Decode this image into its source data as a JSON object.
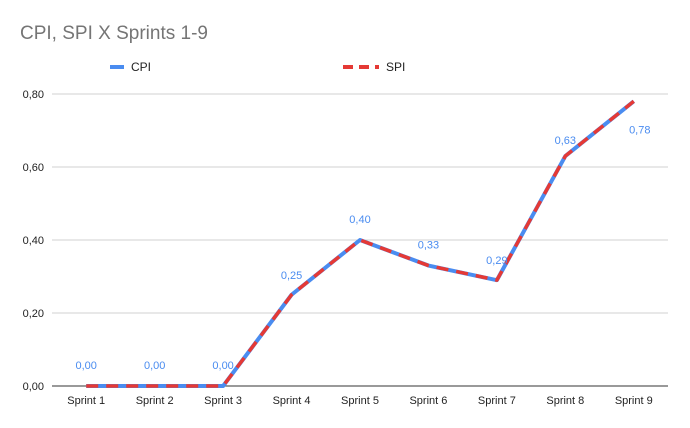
{
  "chart_data": {
    "type": "line",
    "title": "CPI, SPI X Sprints 1-9",
    "xlabel": "",
    "ylabel": "",
    "categories": [
      "Sprint 1",
      "Sprint 2",
      "Sprint 3",
      "Sprint 4",
      "Sprint 5",
      "Sprint 6",
      "Sprint 7",
      "Sprint 8",
      "Sprint 9"
    ],
    "series": [
      {
        "name": "CPI",
        "values": [
          0.0,
          0.0,
          0.0,
          0.25,
          0.4,
          0.33,
          0.29,
          0.63,
          0.78
        ],
        "color": "#4a8cf0",
        "style": "solid"
      },
      {
        "name": "SPI",
        "values": [
          0.0,
          0.0,
          0.0,
          0.25,
          0.4,
          0.33,
          0.29,
          0.63,
          0.78
        ],
        "color": "#e53935",
        "style": "dashed"
      }
    ],
    "data_labels": [
      "0,00",
      "0,00",
      "0,00",
      "0,25",
      "0,40",
      "0,33",
      "0,29",
      "0,63",
      "0,78"
    ],
    "ylim": [
      0,
      0.8
    ],
    "yticks": [
      0,
      0.2,
      0.4,
      0.6,
      0.8
    ],
    "ytick_labels": [
      "0,00",
      "0,20",
      "0,40",
      "0,60",
      "0,80"
    ],
    "grid": true,
    "legend_position": "top"
  }
}
